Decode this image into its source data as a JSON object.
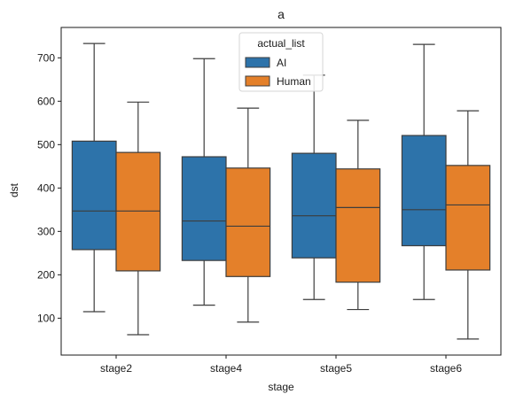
{
  "chart_data": {
    "type": "box",
    "title": "a",
    "xlabel": "stage",
    "ylabel": "dst",
    "categories": [
      "stage2",
      "stage4",
      "stage5",
      "stage6"
    ],
    "ylim": [
      15,
      770
    ],
    "yticks": [
      100,
      200,
      300,
      400,
      500,
      600,
      700
    ],
    "grid": false,
    "legend": {
      "title": "actual_list",
      "position": "top-center",
      "entries": [
        "AI",
        "Human"
      ]
    },
    "series": [
      {
        "name": "AI",
        "color": "#2d73aa",
        "boxes": [
          {
            "min": 115,
            "q1": 258,
            "median": 347,
            "q3": 508,
            "max": 733
          },
          {
            "min": 130,
            "q1": 233,
            "median": 324,
            "q3": 472,
            "max": 698
          },
          {
            "min": 143,
            "q1": 239,
            "median": 336,
            "q3": 480,
            "max": 660
          },
          {
            "min": 143,
            "q1": 267,
            "median": 350,
            "q3": 521,
            "max": 731
          }
        ]
      },
      {
        "name": "Human",
        "color": "#e4802a",
        "boxes": [
          {
            "min": 62,
            "q1": 209,
            "median": 347,
            "q3": 482,
            "max": 598
          },
          {
            "min": 91,
            "q1": 196,
            "median": 312,
            "q3": 446,
            "max": 584
          },
          {
            "min": 120,
            "q1": 183,
            "median": 355,
            "q3": 444,
            "max": 556
          },
          {
            "min": 52,
            "q1": 211,
            "median": 361,
            "q3": 452,
            "max": 578
          }
        ]
      }
    ]
  }
}
